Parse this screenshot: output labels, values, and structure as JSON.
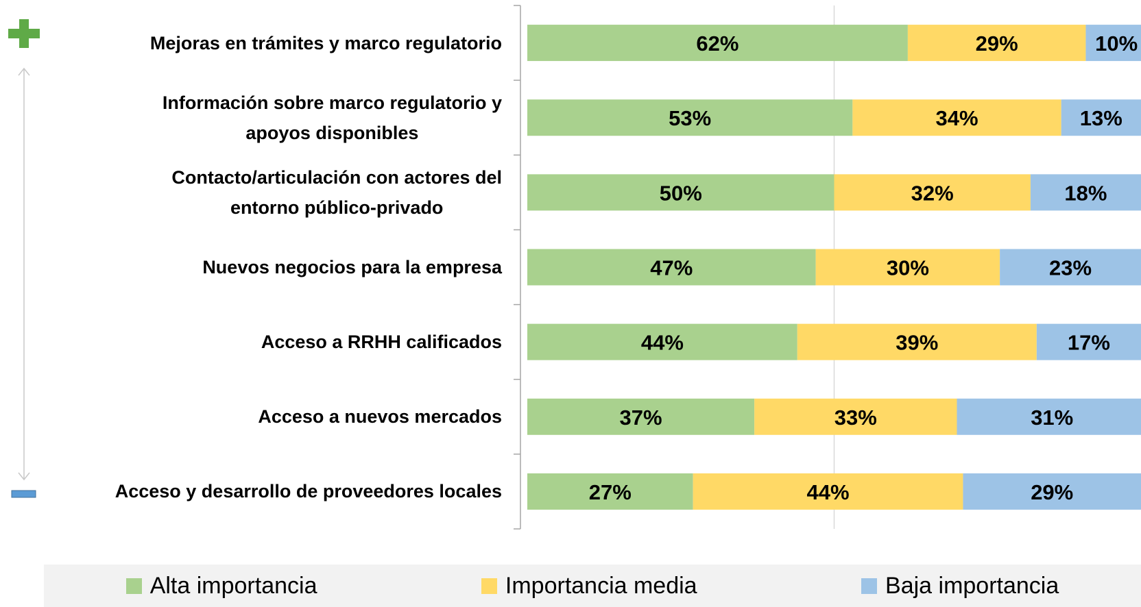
{
  "chart_data": {
    "type": "stacked_bar_horizontal",
    "categories": [
      "Mejoras en trámites y marco regulatorio",
      "Información sobre marco regulatorio y\napoyos disponibles",
      "Contacto/articulación con actores del\nentorno público-privado",
      "Nuevos negocios para la empresa",
      "Acceso a RRHH calificados",
      "Acceso a nuevos mercados",
      "Acceso y desarrollo de proveedores locales"
    ],
    "series": [
      {
        "name": "Alta importancia",
        "color": "#a9d18e",
        "values": [
          62,
          53,
          50,
          47,
          44,
          37,
          27
        ],
        "value_labels": [
          "62%",
          "53%",
          "50%",
          "47%",
          "44%",
          "37%",
          "27%"
        ]
      },
      {
        "name": "Importancia media",
        "color": "#ffd966",
        "values": [
          29,
          34,
          32,
          30,
          39,
          33,
          44
        ],
        "value_labels": [
          "29%",
          "34%",
          "32%",
          "30%",
          "39%",
          "33%",
          "44%"
        ]
      },
      {
        "name": "Baja importancia",
        "color": "#9dc3e6",
        "values": [
          10,
          13,
          18,
          23,
          17,
          31,
          29
        ],
        "value_labels": [
          "10%",
          "13%",
          "18%",
          "23%",
          "17%",
          "31%",
          "29%"
        ]
      }
    ],
    "xlim": [
      0,
      100
    ],
    "xticks": [
      50
    ],
    "grid": true,
    "legend": "bottom"
  }
}
